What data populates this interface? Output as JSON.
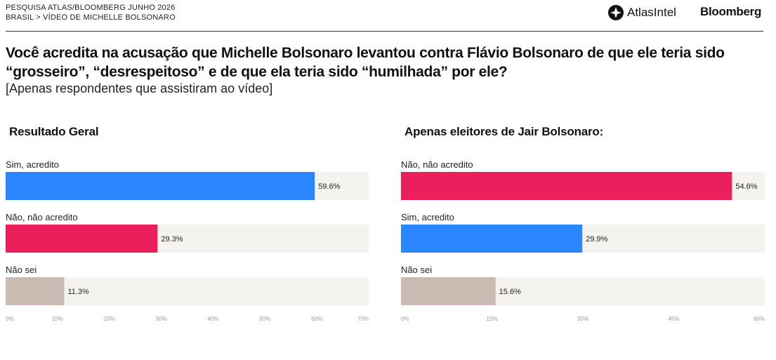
{
  "header": {
    "line1": "PESQUISA ATLAS/BLOOMBERG JUNHO 2026",
    "line2": "BRASIL > VÍDEO DE MICHELLE BOLSONARO",
    "brand_atlas": "AtlasIntel",
    "brand_bloomberg": "Bloomberg"
  },
  "question": "Você acredita na acusação que Michelle Bolsonaro levantou contra Flávio Bolsonaro de que ele teria sido “grosseiro”, “desrespeitoso” e de que ela teria sido “humilhada” por ele?",
  "subnote": "[Apenas respondentes que assistiram ao vídeo]",
  "colors": {
    "sim": "#2a86ff",
    "nao": "#ea1f5c",
    "naosei": "#c9bab2",
    "track": "#f4f3f0"
  },
  "chart_data": [
    {
      "type": "bar",
      "orientation": "horizontal",
      "title": "Resultado Geral",
      "categories": [
        "Sim, acredito",
        "Não, não acredito",
        "Não sei"
      ],
      "values": [
        59.6,
        29.3,
        11.3
      ],
      "value_labels": [
        "59.6%",
        "29.3%",
        "11.3%"
      ],
      "bar_colors": [
        "#2a86ff",
        "#ea1f5c",
        "#c9bab2"
      ],
      "xlim": [
        0,
        70
      ],
      "ticks": [
        "0%",
        "10%",
        "20%",
        "30%",
        "40%",
        "50%",
        "60%",
        "70%"
      ]
    },
    {
      "type": "bar",
      "orientation": "horizontal",
      "title": "Apenas eleitores de Jair Bolsonaro:",
      "categories": [
        "Não, não acredito",
        "Sim, acredito",
        "Não sei"
      ],
      "values": [
        54.6,
        29.9,
        15.6
      ],
      "value_labels": [
        "54.6%",
        "29.9%",
        "15.6%"
      ],
      "bar_colors": [
        "#ea1f5c",
        "#2a86ff",
        "#c9bab2"
      ],
      "xlim": [
        0,
        60
      ],
      "ticks": [
        "0%",
        "15%",
        "30%",
        "45%",
        "60%"
      ]
    }
  ]
}
